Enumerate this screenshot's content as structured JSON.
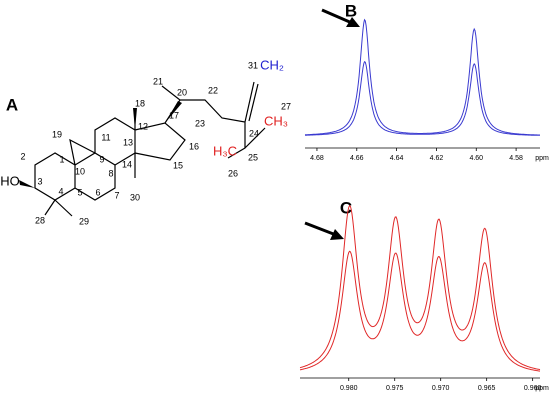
{
  "structure": {
    "label": "A",
    "atoms": [
      "18",
      "21",
      "20",
      "22",
      "31",
      "CH₂",
      "27",
      "CH₃",
      "19",
      "12",
      "17",
      "23",
      "24",
      "H₃C",
      "25",
      "26",
      "11",
      "13",
      "16",
      "2",
      "1",
      "9",
      "14",
      "15",
      "10",
      "8",
      "7",
      "3",
      "HO",
      "4",
      "5",
      "6",
      "30",
      "29",
      "28"
    ]
  },
  "chart_data": [
    {
      "type": "spectrum",
      "label": "B",
      "xlabel": "ppm",
      "xlim": [
        4.686,
        4.568
      ],
      "xticks": [
        4.68,
        4.66,
        4.64,
        4.62,
        {
          "value": 4.6,
          "label": "4.60"
        },
        4.58
      ],
      "peaks": [
        4.656,
        4.601
      ],
      "ylim": [
        0,
        1
      ],
      "series": [
        {
          "color": "#3a3ad0",
          "values": [
            1.0,
            0.92
          ]
        },
        {
          "color": "#3a3ad0",
          "values": [
            0.64,
            0.62
          ]
        }
      ]
    },
    {
      "type": "spectrum",
      "label": "C",
      "xlabel": "ppm",
      "xlim": [
        0.9853,
        0.9592
      ],
      "xticks": [
        {
          "value": 0.98,
          "label": "0.980"
        },
        0.975,
        {
          "value": 0.97,
          "label": "0.970"
        },
        0.965,
        {
          "value": 0.96,
          "label": "0.960"
        }
      ],
      "peaks": [
        0.9799,
        0.9749,
        0.9702,
        0.9652
      ],
      "ylim": [
        0,
        1
      ],
      "series": [
        {
          "color": "#e02828",
          "values": [
            1.0,
            0.89,
            0.88,
            0.86
          ]
        },
        {
          "color": "#e02828",
          "values": [
            0.73,
            0.69,
            0.67,
            0.66
          ]
        }
      ]
    }
  ]
}
